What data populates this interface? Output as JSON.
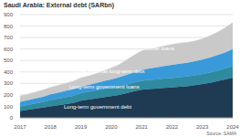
{
  "chart_data": {
    "type": "area",
    "title": "Saudi Arabia: External debt (SARbn)",
    "source": "Source: SAMA",
    "stacked": true,
    "grid": true,
    "x": [
      2017,
      2017.25,
      2017.5,
      2017.75,
      2018,
      2018.25,
      2018.5,
      2018.75,
      2019,
      2019.25,
      2019.5,
      2019.75,
      2020,
      2020.25,
      2020.5,
      2020.75,
      2021,
      2021.25,
      2021.5,
      2021.75,
      2022,
      2022.25,
      2022.5,
      2022.75,
      2023,
      2023.25,
      2023.5,
      2023.75,
      2024
    ],
    "xlim": [
      2017,
      2024
    ],
    "xticks": [
      2017,
      2018,
      2019,
      2020,
      2021,
      2022,
      2023,
      2024
    ],
    "ylim": [
      0,
      900
    ],
    "yticks": [
      0,
      100,
      200,
      300,
      400,
      500,
      600,
      700,
      800,
      900
    ],
    "series": [
      {
        "name": "Long-term government debt",
        "color": "#1f3b53",
        "values": [
          60,
          70,
          80,
          90,
          100,
          110,
          120,
          130,
          150,
          160,
          170,
          180,
          190,
          200,
          215,
          230,
          245,
          250,
          255,
          260,
          265,
          270,
          275,
          285,
          295,
          305,
          320,
          335,
          350
        ]
      },
      {
        "name": "Long-term government loans",
        "color": "#2f8a9f",
        "values": [
          40,
          42,
          45,
          48,
          55,
          58,
          60,
          62,
          65,
          66,
          68,
          70,
          70,
          72,
          74,
          76,
          78,
          80,
          80,
          82,
          82,
          84,
          85,
          86,
          88,
          90,
          92,
          95,
          100
        ]
      },
      {
        "name": "Other external long-term debt",
        "color": "#3a9ad9",
        "values": [
          40,
          42,
          44,
          46,
          50,
          52,
          54,
          56,
          58,
          60,
          65,
          70,
          75,
          80,
          85,
          90,
          95,
          100,
          105,
          110,
          115,
          118,
          120,
          122,
          125,
          130,
          135,
          140,
          150
        ]
      },
      {
        "name": "Other loans",
        "color": "#c9c9c9",
        "values": [
          50,
          52,
          55,
          58,
          60,
          62,
          66,
          70,
          75,
          78,
          82,
          90,
          100,
          110,
          130,
          150,
          165,
          170,
          172,
          175,
          178,
          180,
          178,
          176,
          180,
          190,
          200,
          215,
          230
        ]
      }
    ]
  }
}
